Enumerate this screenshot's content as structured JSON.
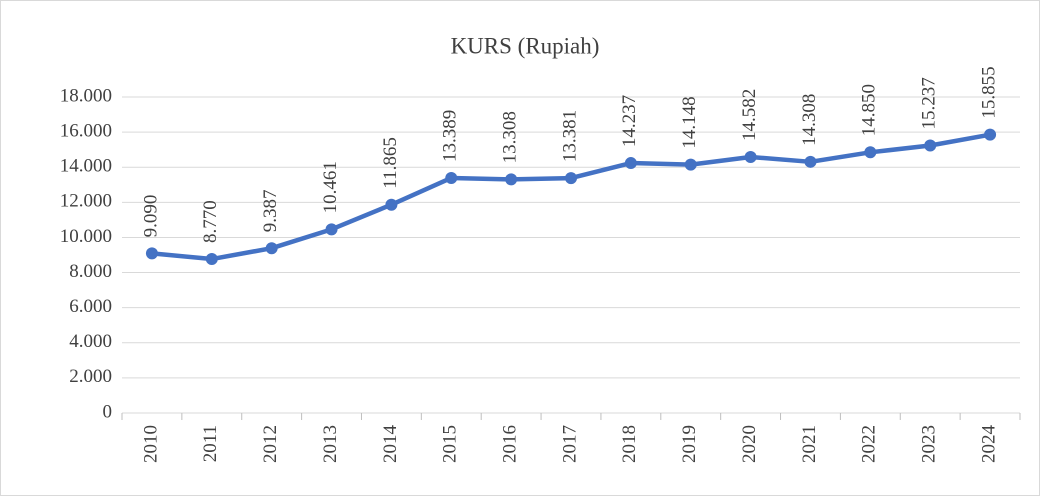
{
  "chart_data": {
    "type": "line",
    "title": "KURS (Rupiah)",
    "categories": [
      "2010",
      "2011",
      "2012",
      "2013",
      "2014",
      "2015",
      "2016",
      "2017",
      "2018",
      "2019",
      "2020",
      "2021",
      "2022",
      "2023",
      "2024"
    ],
    "values": [
      9090,
      8770,
      9387,
      10461,
      11865,
      13389,
      13308,
      13381,
      14237,
      14148,
      14582,
      14308,
      14850,
      15237,
      15855
    ],
    "value_labels": [
      "9.090",
      "8.770",
      "9.387",
      "10.461",
      "11.865",
      "13.389",
      "13.308",
      "13.381",
      "14.237",
      "14.148",
      "14.582",
      "14.308",
      "14.850",
      "15.237",
      "15.855"
    ],
    "color": "#4472c4",
    "ylim": [
      0,
      18000
    ],
    "yticks": [
      0,
      {
        "value": 2000,
        "label": "2.000"
      },
      {
        "value": 4000,
        "label": "4.000"
      },
      {
        "value": 6000,
        "label": "6.000"
      },
      {
        "value": 8000,
        "label": "8.000"
      },
      {
        "value": 10000,
        "label": "10.000"
      },
      {
        "value": 12000,
        "label": "12.000"
      },
      {
        "value": 14000,
        "label": "14.000"
      },
      {
        "value": 16000,
        "label": "16.000"
      },
      {
        "value": 18000,
        "label": "18.000"
      }
    ],
    "grid": true
  }
}
